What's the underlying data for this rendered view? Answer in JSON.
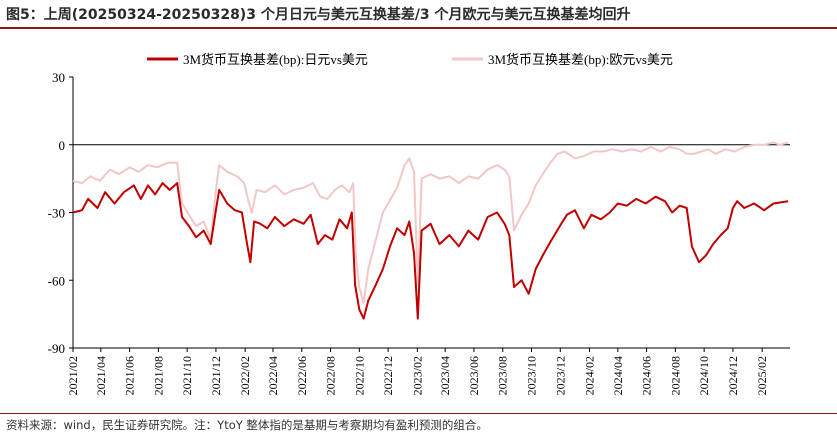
{
  "header": {
    "title": "图5：上周(20250324-20250328)3 个月日元与美元互换基差/3 个月欧元与美元互换基差均回升"
  },
  "footer": {
    "source": "资料来源：wind，民生证券研究院。注：YtoY 整体指的是基期与考察期均有盈利预测的组合。"
  },
  "chart_data": {
    "type": "line",
    "ylim": [
      -90,
      30
    ],
    "yticks": [
      30,
      0,
      -30,
      -60,
      -90
    ],
    "xlim": [
      "2021-02",
      "2025-04"
    ],
    "xticks": [
      "2021/02",
      "2021/04",
      "2021/06",
      "2021/08",
      "2021/10",
      "2021/12",
      "2022/02",
      "2022/04",
      "2022/06",
      "2022/08",
      "2022/10",
      "2022/12",
      "2023/02",
      "2023/04",
      "2023/06",
      "2023/08",
      "2023/10",
      "2023/12",
      "2024/02",
      "2024/04",
      "2024/06",
      "2024/08",
      "2024/10",
      "2024/12",
      "2025/02"
    ],
    "legend_position": "top",
    "series": [
      {
        "name": "3M货币互换基差(bp):日元vs美元",
        "color": "#c00000",
        "points": [
          [
            "2021-02-01",
            -30
          ],
          [
            "2021-02-20",
            -29
          ],
          [
            "2021-03-05",
            -24
          ],
          [
            "2021-03-25",
            -28
          ],
          [
            "2021-04-10",
            -21
          ],
          [
            "2021-04-30",
            -26
          ],
          [
            "2021-05-20",
            -21
          ],
          [
            "2021-06-10",
            -18
          ],
          [
            "2021-06-25",
            -24
          ],
          [
            "2021-07-10",
            -18
          ],
          [
            "2021-07-25",
            -22
          ],
          [
            "2021-08-10",
            -17
          ],
          [
            "2021-08-25",
            -20
          ],
          [
            "2021-09-10",
            -17
          ],
          [
            "2021-09-20",
            -32
          ],
          [
            "2021-10-05",
            -36
          ],
          [
            "2021-10-20",
            -41
          ],
          [
            "2021-11-05",
            -38
          ],
          [
            "2021-11-20",
            -44
          ],
          [
            "2021-12-01",
            -29
          ],
          [
            "2021-12-08",
            -20
          ],
          [
            "2021-12-25",
            -26
          ],
          [
            "2022-01-10",
            -29
          ],
          [
            "2022-01-25",
            -30
          ],
          [
            "2022-02-05",
            -44
          ],
          [
            "2022-02-12",
            -52
          ],
          [
            "2022-02-20",
            -34
          ],
          [
            "2022-03-05",
            -35
          ],
          [
            "2022-03-20",
            -37
          ],
          [
            "2022-04-05",
            -32
          ],
          [
            "2022-04-25",
            -36
          ],
          [
            "2022-05-15",
            -33
          ],
          [
            "2022-06-05",
            -35
          ],
          [
            "2022-06-20",
            -31
          ],
          [
            "2022-07-05",
            -44
          ],
          [
            "2022-07-20",
            -40
          ],
          [
            "2022-08-05",
            -42
          ],
          [
            "2022-08-20",
            -33
          ],
          [
            "2022-09-05",
            -37
          ],
          [
            "2022-09-15",
            -30
          ],
          [
            "2022-09-22",
            -62
          ],
          [
            "2022-10-01",
            -73
          ],
          [
            "2022-10-10",
            -77
          ],
          [
            "2022-10-20",
            -69
          ],
          [
            "2022-11-05",
            -62
          ],
          [
            "2022-11-20",
            -55
          ],
          [
            "2022-12-05",
            -45
          ],
          [
            "2022-12-20",
            -37
          ],
          [
            "2023-01-05",
            -40
          ],
          [
            "2023-01-15",
            -34
          ],
          [
            "2023-01-25",
            -48
          ],
          [
            "2023-02-02",
            -77
          ],
          [
            "2023-02-10",
            -38
          ],
          [
            "2023-03-01",
            -35
          ],
          [
            "2023-03-20",
            -44
          ],
          [
            "2023-04-10",
            -40
          ],
          [
            "2023-04-30",
            -45
          ],
          [
            "2023-05-20",
            -38
          ],
          [
            "2023-06-10",
            -42
          ],
          [
            "2023-06-30",
            -32
          ],
          [
            "2023-07-20",
            -30
          ],
          [
            "2023-08-05",
            -35
          ],
          [
            "2023-08-15",
            -40
          ],
          [
            "2023-08-25",
            -63
          ],
          [
            "2023-09-10",
            -60
          ],
          [
            "2023-09-25",
            -66
          ],
          [
            "2023-10-10",
            -55
          ],
          [
            "2023-10-25",
            -49
          ],
          [
            "2023-11-10",
            -43
          ],
          [
            "2023-11-30",
            -36
          ],
          [
            "2023-12-15",
            -31
          ],
          [
            "2024-01-01",
            -29
          ],
          [
            "2024-01-20",
            -37
          ],
          [
            "2024-02-05",
            -31
          ],
          [
            "2024-02-25",
            -33
          ],
          [
            "2024-03-15",
            -30
          ],
          [
            "2024-04-01",
            -26
          ],
          [
            "2024-04-20",
            -27
          ],
          [
            "2024-05-10",
            -24
          ],
          [
            "2024-05-30",
            -26
          ],
          [
            "2024-06-20",
            -23
          ],
          [
            "2024-07-10",
            -25
          ],
          [
            "2024-07-25",
            -30
          ],
          [
            "2024-08-10",
            -27
          ],
          [
            "2024-08-25",
            -28
          ],
          [
            "2024-09-05",
            -45
          ],
          [
            "2024-09-20",
            -52
          ],
          [
            "2024-10-05",
            -49
          ],
          [
            "2024-10-20",
            -44
          ],
          [
            "2024-11-05",
            -40
          ],
          [
            "2024-11-20",
            -37
          ],
          [
            "2024-12-01",
            -28
          ],
          [
            "2024-12-10",
            -25
          ],
          [
            "2024-12-25",
            -28
          ],
          [
            "2025-01-15",
            -26
          ],
          [
            "2025-02-05",
            -29
          ],
          [
            "2025-02-25",
            -26
          ],
          [
            "2025-03-28",
            -25
          ]
        ]
      },
      {
        "name": "3M货币互换基差(bp):欧元vs美元",
        "color": "#f2c7c7",
        "points": [
          [
            "2021-02-01",
            -16
          ],
          [
            "2021-02-20",
            -17
          ],
          [
            "2021-03-10",
            -14
          ],
          [
            "2021-03-30",
            -16
          ],
          [
            "2021-04-20",
            -11
          ],
          [
            "2021-05-10",
            -13
          ],
          [
            "2021-06-01",
            -10
          ],
          [
            "2021-06-20",
            -12
          ],
          [
            "2021-07-10",
            -9
          ],
          [
            "2021-07-30",
            -10
          ],
          [
            "2021-08-20",
            -8
          ],
          [
            "2021-09-10",
            -8
          ],
          [
            "2021-09-20",
            -26
          ],
          [
            "2021-10-05",
            -31
          ],
          [
            "2021-10-20",
            -36
          ],
          [
            "2021-11-05",
            -34
          ],
          [
            "2021-11-20",
            -42
          ],
          [
            "2021-12-01",
            -20
          ],
          [
            "2021-12-08",
            -9
          ],
          [
            "2021-12-25",
            -12
          ],
          [
            "2022-01-15",
            -14
          ],
          [
            "2022-01-30",
            -17
          ],
          [
            "2022-02-08",
            -25
          ],
          [
            "2022-02-15",
            -30
          ],
          [
            "2022-02-25",
            -20
          ],
          [
            "2022-03-15",
            -21
          ],
          [
            "2022-04-05",
            -18
          ],
          [
            "2022-04-25",
            -22
          ],
          [
            "2022-05-15",
            -20
          ],
          [
            "2022-06-05",
            -19
          ],
          [
            "2022-06-25",
            -17
          ],
          [
            "2022-07-10",
            -23
          ],
          [
            "2022-07-25",
            -24
          ],
          [
            "2022-08-10",
            -20
          ],
          [
            "2022-08-25",
            -18
          ],
          [
            "2022-09-10",
            -21
          ],
          [
            "2022-09-18",
            -17
          ],
          [
            "2022-09-24",
            -50
          ],
          [
            "2022-10-01",
            -63
          ],
          [
            "2022-10-10",
            -70
          ],
          [
            "2022-10-20",
            -55
          ],
          [
            "2022-11-05",
            -42
          ],
          [
            "2022-11-20",
            -30
          ],
          [
            "2022-12-01",
            -26
          ],
          [
            "2022-12-20",
            -19
          ],
          [
            "2023-01-05",
            -9
          ],
          [
            "2023-01-15",
            -6
          ],
          [
            "2023-01-25",
            -12
          ],
          [
            "2023-02-02",
            -62
          ],
          [
            "2023-02-10",
            -15
          ],
          [
            "2023-03-01",
            -13
          ],
          [
            "2023-03-20",
            -15
          ],
          [
            "2023-04-10",
            -14
          ],
          [
            "2023-04-30",
            -17
          ],
          [
            "2023-05-20",
            -14
          ],
          [
            "2023-06-10",
            -15
          ],
          [
            "2023-06-30",
            -11
          ],
          [
            "2023-07-20",
            -9
          ],
          [
            "2023-08-05",
            -11
          ],
          [
            "2023-08-15",
            -14
          ],
          [
            "2023-08-25",
            -38
          ],
          [
            "2023-09-10",
            -31
          ],
          [
            "2023-09-25",
            -26
          ],
          [
            "2023-10-10",
            -18
          ],
          [
            "2023-10-25",
            -13
          ],
          [
            "2023-11-10",
            -8
          ],
          [
            "2023-11-25",
            -4
          ],
          [
            "2023-12-10",
            -3
          ],
          [
            "2024-01-01",
            -6
          ],
          [
            "2024-01-20",
            -5
          ],
          [
            "2024-02-10",
            -3
          ],
          [
            "2024-03-01",
            -3
          ],
          [
            "2024-03-20",
            -2
          ],
          [
            "2024-04-10",
            -3
          ],
          [
            "2024-05-01",
            -2
          ],
          [
            "2024-05-20",
            -3
          ],
          [
            "2024-06-10",
            -1
          ],
          [
            "2024-07-01",
            -3
          ],
          [
            "2024-07-20",
            -1
          ],
          [
            "2024-08-10",
            -2
          ],
          [
            "2024-08-25",
            -4
          ],
          [
            "2024-09-10",
            -4
          ],
          [
            "2024-09-25",
            -3
          ],
          [
            "2024-10-10",
            -2
          ],
          [
            "2024-10-25",
            -4
          ],
          [
            "2024-11-15",
            -2
          ],
          [
            "2024-12-05",
            -3
          ],
          [
            "2024-12-25",
            -1
          ],
          [
            "2025-01-15",
            0
          ],
          [
            "2025-02-05",
            0
          ],
          [
            "2025-02-25",
            1
          ],
          [
            "2025-03-10",
            0
          ],
          [
            "2025-03-28",
            1
          ]
        ]
      }
    ]
  }
}
